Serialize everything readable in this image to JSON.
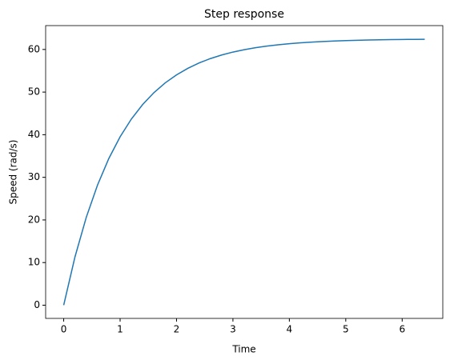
{
  "chart_data": {
    "type": "line",
    "title": "Step response",
    "x_label": "Time",
    "y_label": "Speed (rad/s)",
    "x": [
      0,
      0.2,
      0.4,
      0.6,
      0.8,
      1.0,
      1.2,
      1.4,
      1.6,
      1.8,
      2.0,
      2.2,
      2.4,
      2.6,
      2.8,
      3.0,
      3.2,
      3.4,
      3.6,
      3.8,
      4.0,
      4.2,
      4.4,
      4.6,
      4.8,
      5.0,
      5.2,
      5.4,
      5.6,
      5.8,
      6.0,
      6.2,
      6.4
    ],
    "values": [
      0,
      11.33,
      20.61,
      28.2,
      34.42,
      39.51,
      43.68,
      47.09,
      49.88,
      52.17,
      54.04,
      55.57,
      56.83,
      57.86,
      58.7,
      59.39,
      59.95,
      60.41,
      60.79,
      61.1,
      61.36,
      61.56,
      61.73,
      61.87,
      61.99,
      62.08,
      62.16,
      62.22,
      62.27,
      62.31,
      62.34,
      62.37,
      62.39
    ],
    "color": "#1f77b4",
    "xlim": [
      -0.32,
      6.72
    ],
    "ylim": [
      -3.1,
      65.6
    ],
    "xticks": [
      0,
      1,
      2,
      3,
      4,
      5,
      6
    ],
    "yticks": [
      0,
      10,
      20,
      30,
      40,
      50,
      60
    ],
    "grid": false
  }
}
